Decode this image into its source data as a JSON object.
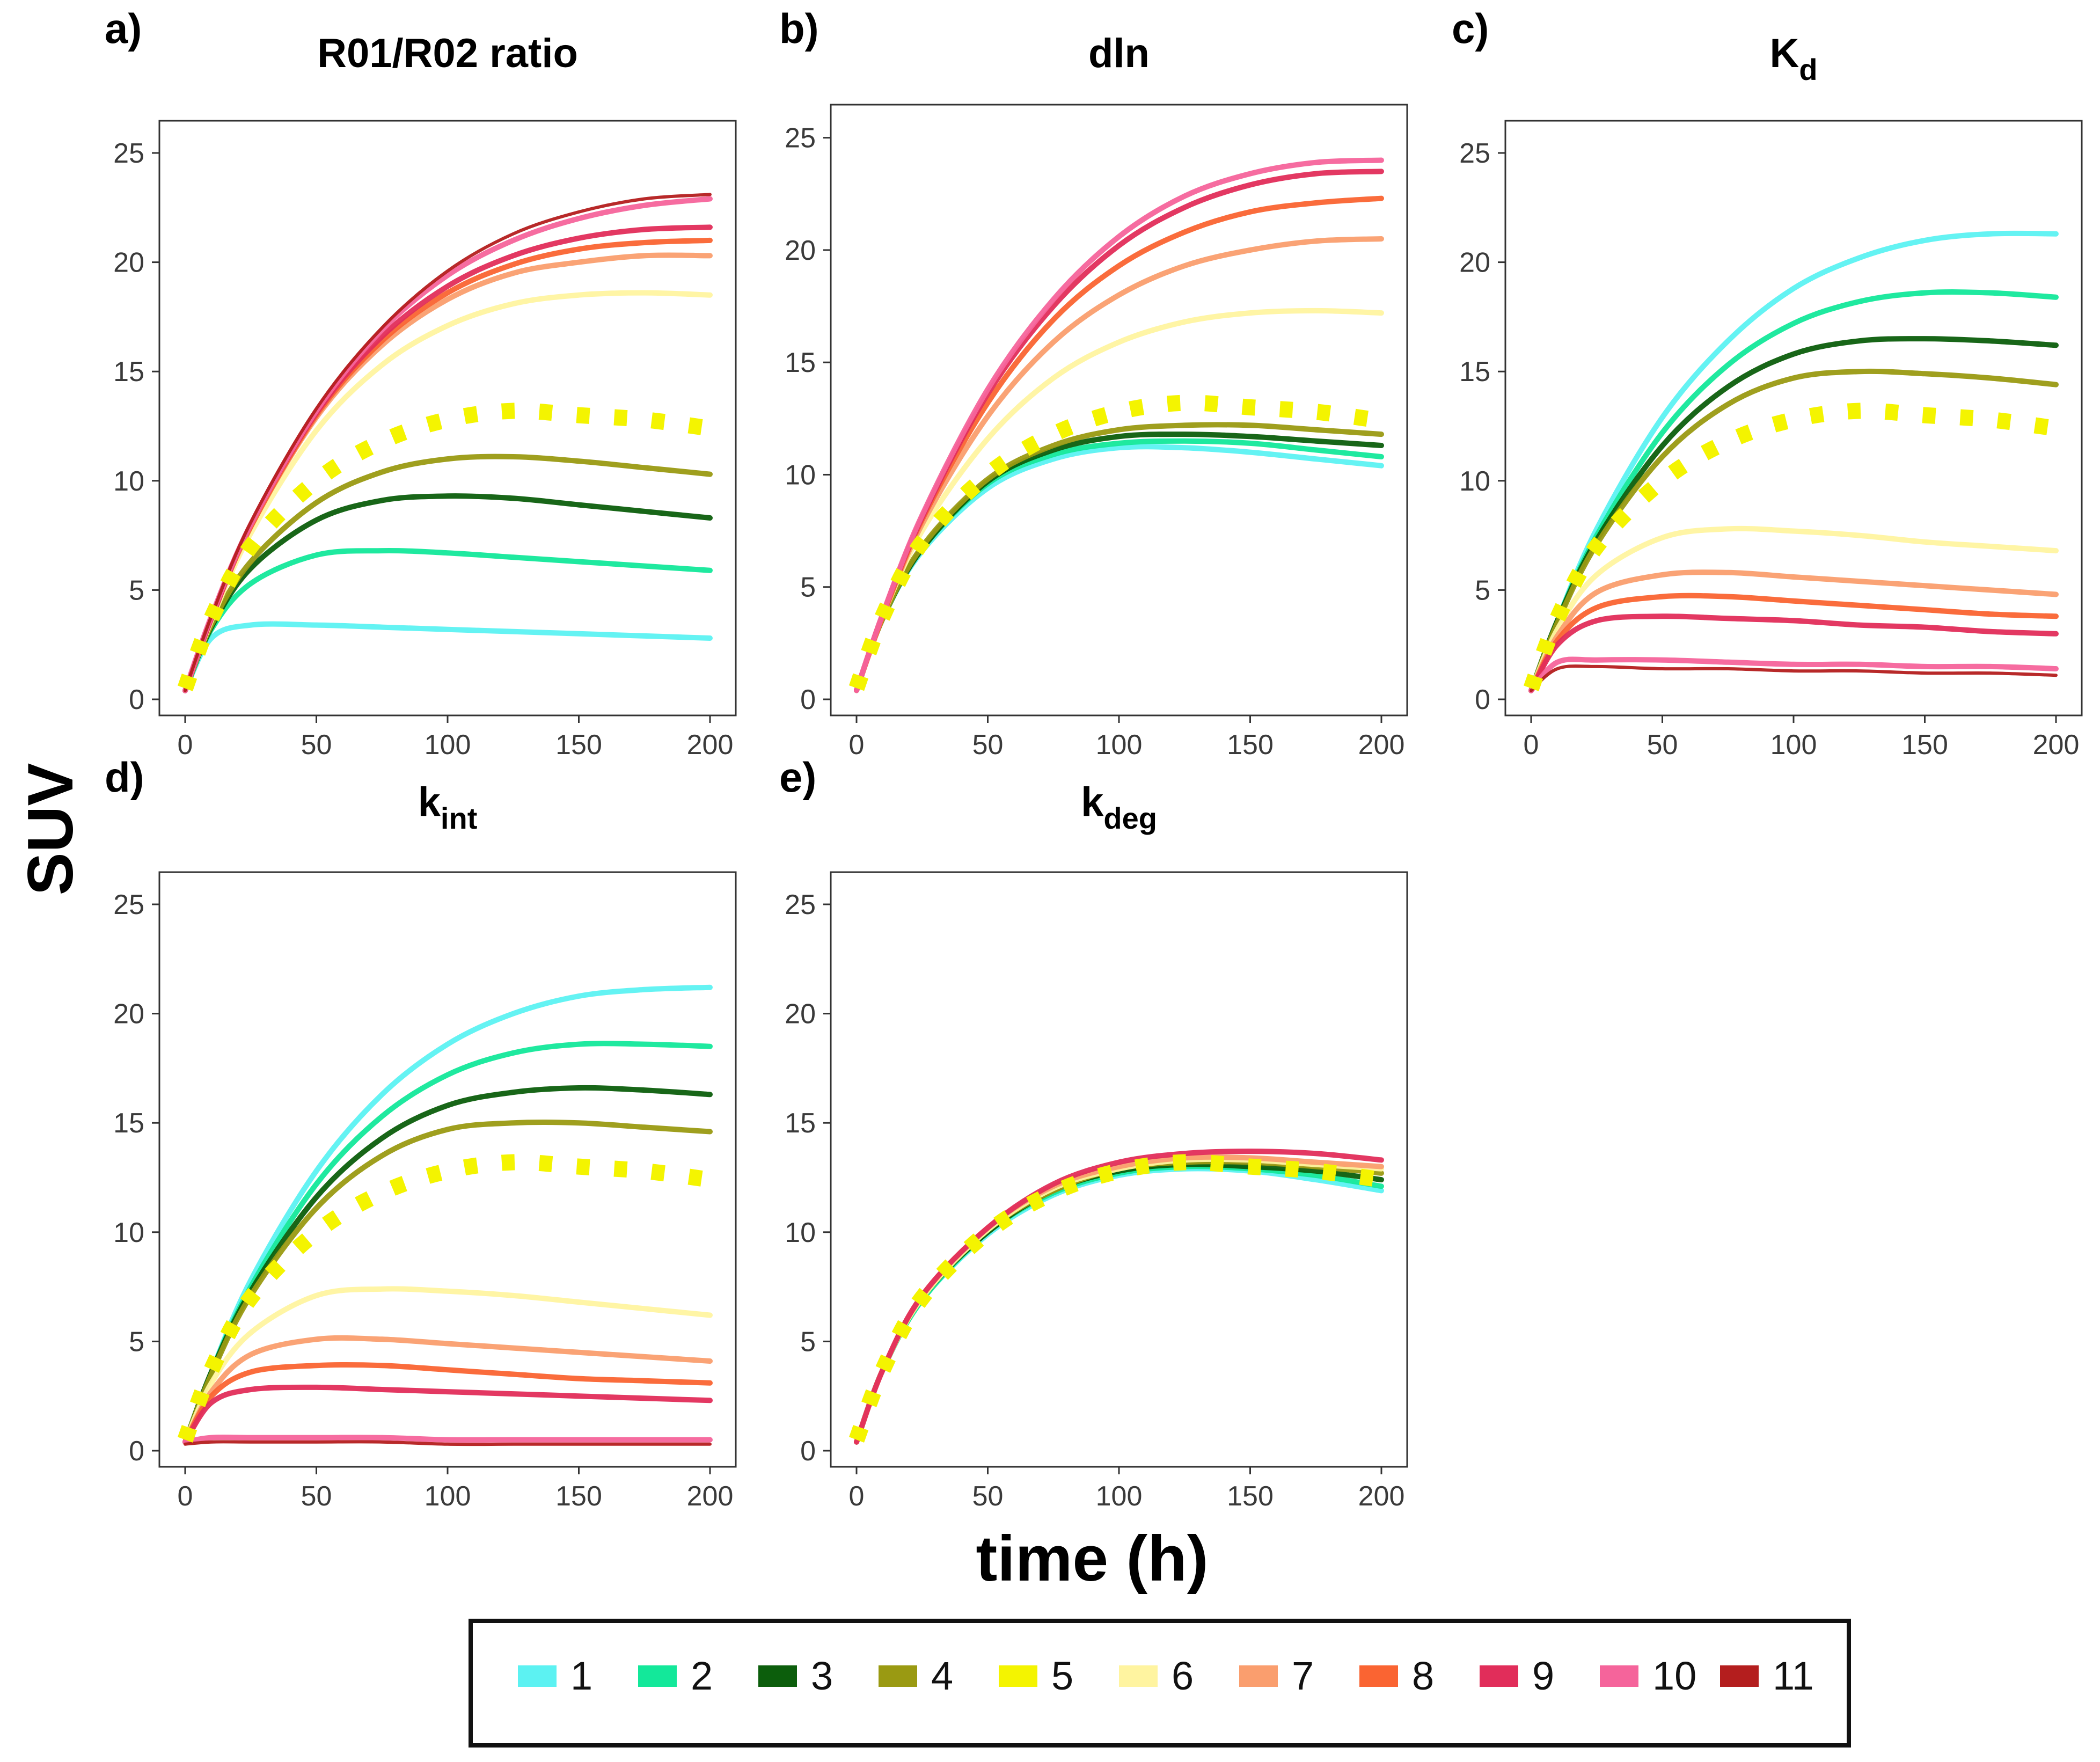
{
  "figure": {
    "ylabel": "SUV",
    "xlabel": "time (h)"
  },
  "legend": {
    "items": [
      {
        "label": "1",
        "color": "#5cf2f2"
      },
      {
        "label": "2",
        "color": "#13e89a"
      },
      {
        "label": "3",
        "color": "#0c5e0c"
      },
      {
        "label": "4",
        "color": "#9a9a12"
      },
      {
        "label": "5",
        "color": "#f4f400"
      },
      {
        "label": "6",
        "color": "#fff4a0"
      },
      {
        "label": "7",
        "color": "#fa9e6e"
      },
      {
        "label": "8",
        "color": "#fa6432"
      },
      {
        "label": "9",
        "color": "#e12d5a"
      },
      {
        "label": "10",
        "color": "#f5649b"
      },
      {
        "label": "11",
        "color": "#b41e1e"
      }
    ]
  },
  "axis": {
    "x_ticks": [
      0,
      50,
      100,
      150,
      200
    ],
    "y_ticks": [
      0,
      5,
      10,
      15,
      20,
      25
    ]
  },
  "chart_data": [
    {
      "type": "line",
      "panel": "a)",
      "title": "R01/R02 ratio",
      "title_sub": "",
      "xlim": [
        0,
        200
      ],
      "ylim": [
        0,
        25
      ],
      "x": [
        0,
        10,
        25,
        50,
        75,
        100,
        125,
        150,
        175,
        200
      ],
      "reference": {
        "name": "5",
        "values": [
          0.5,
          3.7,
          7.0,
          10.0,
          11.8,
          12.8,
          13.2,
          13.0,
          12.8,
          12.4
        ]
      },
      "series": [
        {
          "name": "1",
          "values": [
            0.4,
            2.8,
            3.4,
            3.4,
            3.3,
            3.2,
            3.1,
            3.0,
            2.9,
            2.8
          ]
        },
        {
          "name": "2",
          "values": [
            0.4,
            3.2,
            5.3,
            6.6,
            6.8,
            6.7,
            6.5,
            6.3,
            6.1,
            5.9
          ]
        },
        {
          "name": "3",
          "values": [
            0.4,
            3.3,
            6.0,
            8.2,
            9.1,
            9.3,
            9.2,
            8.9,
            8.6,
            8.3
          ]
        },
        {
          "name": "4",
          "values": [
            0.4,
            3.4,
            6.3,
            9.0,
            10.4,
            11.0,
            11.1,
            10.9,
            10.6,
            10.3
          ]
        },
        {
          "name": "6",
          "values": [
            0.4,
            3.6,
            7.6,
            12.3,
            15.3,
            17.1,
            18.1,
            18.5,
            18.6,
            18.5
          ]
        },
        {
          "name": "7",
          "values": [
            0.4,
            3.7,
            7.9,
            12.9,
            16.2,
            18.3,
            19.5,
            20.0,
            20.3,
            20.3
          ]
        },
        {
          "name": "8",
          "values": [
            0.4,
            3.7,
            7.9,
            13.0,
            16.4,
            18.6,
            19.9,
            20.6,
            20.9,
            21.0
          ]
        },
        {
          "name": "9",
          "values": [
            0.4,
            3.7,
            8.0,
            13.1,
            16.6,
            18.9,
            20.3,
            21.1,
            21.5,
            21.6
          ]
        },
        {
          "name": "10",
          "values": [
            0.4,
            3.8,
            8.0,
            13.2,
            16.9,
            19.4,
            21.0,
            22.0,
            22.6,
            22.9
          ]
        },
        {
          "name": "11",
          "values": [
            0.4,
            3.8,
            8.1,
            13.3,
            17.0,
            19.6,
            21.3,
            22.3,
            22.9,
            23.1
          ]
        }
      ]
    },
    {
      "type": "line",
      "panel": "b)",
      "title": "dln",
      "title_sub": "",
      "xlim": [
        0,
        200
      ],
      "ylim": [
        0,
        25
      ],
      "x": [
        0,
        10,
        25,
        50,
        75,
        100,
        125,
        150,
        175,
        200
      ],
      "reference": {
        "name": "5",
        "values": [
          0.5,
          3.7,
          7.0,
          10.0,
          11.8,
          12.8,
          13.2,
          13.0,
          12.8,
          12.4
        ]
      },
      "series": [
        {
          "name": "1",
          "values": [
            0.4,
            3.6,
            6.6,
            9.4,
            10.7,
            11.2,
            11.2,
            11.0,
            10.7,
            10.4
          ]
        },
        {
          "name": "2",
          "values": [
            0.4,
            3.6,
            6.7,
            9.6,
            10.9,
            11.4,
            11.5,
            11.4,
            11.1,
            10.8
          ]
        },
        {
          "name": "3",
          "values": [
            0.4,
            3.6,
            6.7,
            9.7,
            11.1,
            11.7,
            11.8,
            11.7,
            11.5,
            11.3
          ]
        },
        {
          "name": "4",
          "values": [
            0.4,
            3.6,
            6.8,
            9.8,
            11.3,
            12.0,
            12.2,
            12.2,
            12.0,
            11.8
          ]
        },
        {
          "name": "6",
          "values": [
            0.4,
            3.7,
            7.5,
            11.6,
            14.3,
            15.9,
            16.8,
            17.2,
            17.3,
            17.2
          ]
        },
        {
          "name": "7",
          "values": [
            0.4,
            3.7,
            7.8,
            12.6,
            15.9,
            18.0,
            19.3,
            20.0,
            20.4,
            20.5
          ]
        },
        {
          "name": "8",
          "values": [
            0.4,
            3.7,
            8.0,
            13.2,
            16.9,
            19.3,
            20.8,
            21.7,
            22.1,
            22.3
          ]
        },
        {
          "name": "9",
          "values": [
            0.4,
            3.8,
            8.1,
            13.6,
            17.5,
            20.2,
            21.9,
            22.9,
            23.4,
            23.5
          ]
        },
        {
          "name": "10",
          "values": [
            0.4,
            3.8,
            8.2,
            13.8,
            17.8,
            20.6,
            22.4,
            23.4,
            23.9,
            24.0
          ]
        }
      ]
    },
    {
      "type": "line",
      "panel": "c)",
      "title": "K",
      "title_sub": "d",
      "xlim": [
        0,
        200
      ],
      "ylim": [
        0,
        25
      ],
      "x": [
        0,
        10,
        25,
        50,
        75,
        100,
        125,
        150,
        175,
        200
      ],
      "reference": {
        "name": "5",
        "values": [
          0.5,
          3.7,
          7.0,
          10.0,
          11.8,
          12.8,
          13.2,
          13.0,
          12.8,
          12.4
        ]
      },
      "series": [
        {
          "name": "1",
          "values": [
            0.4,
            3.6,
            7.8,
            12.9,
            16.4,
            18.8,
            20.2,
            21.0,
            21.3,
            21.3
          ]
        },
        {
          "name": "2",
          "values": [
            0.4,
            3.6,
            7.5,
            12.2,
            15.3,
            17.2,
            18.2,
            18.6,
            18.6,
            18.4
          ]
        },
        {
          "name": "3",
          "values": [
            0.4,
            3.6,
            7.3,
            11.6,
            14.3,
            15.8,
            16.4,
            16.5,
            16.4,
            16.2
          ]
        },
        {
          "name": "4",
          "values": [
            0.4,
            3.5,
            7.1,
            11.1,
            13.5,
            14.7,
            15.0,
            14.9,
            14.7,
            14.4
          ]
        },
        {
          "name": "6",
          "values": [
            0.4,
            3.2,
            5.7,
            7.4,
            7.8,
            7.7,
            7.5,
            7.2,
            7.0,
            6.8
          ]
        },
        {
          "name": "7",
          "values": [
            0.4,
            2.9,
            4.9,
            5.7,
            5.8,
            5.6,
            5.4,
            5.2,
            5.0,
            4.8
          ]
        },
        {
          "name": "8",
          "values": [
            0.4,
            2.7,
            4.2,
            4.7,
            4.7,
            4.5,
            4.3,
            4.1,
            3.9,
            3.8
          ]
        },
        {
          "name": "9",
          "values": [
            0.4,
            2.5,
            3.6,
            3.8,
            3.7,
            3.6,
            3.4,
            3.3,
            3.1,
            3.0
          ]
        },
        {
          "name": "10",
          "values": [
            0.4,
            1.7,
            1.8,
            1.8,
            1.7,
            1.6,
            1.6,
            1.5,
            1.5,
            1.4
          ]
        },
        {
          "name": "11",
          "values": [
            0.4,
            1.4,
            1.5,
            1.4,
            1.4,
            1.3,
            1.3,
            1.2,
            1.2,
            1.1
          ]
        }
      ]
    },
    {
      "type": "line",
      "panel": "d)",
      "title": "k",
      "title_sub": "int",
      "xlim": [
        0,
        200
      ],
      "ylim": [
        0,
        25
      ],
      "x": [
        0,
        10,
        25,
        50,
        75,
        100,
        125,
        150,
        175,
        200
      ],
      "reference": {
        "name": "5",
        "values": [
          0.5,
          3.7,
          7.0,
          10.0,
          11.8,
          12.8,
          13.2,
          13.0,
          12.8,
          12.4
        ]
      },
      "series": [
        {
          "name": "1",
          "values": [
            0.4,
            3.6,
            7.8,
            12.8,
            16.3,
            18.6,
            20.0,
            20.8,
            21.1,
            21.2
          ]
        },
        {
          "name": "2",
          "values": [
            0.4,
            3.6,
            7.5,
            12.2,
            15.3,
            17.2,
            18.2,
            18.6,
            18.6,
            18.5
          ]
        },
        {
          "name": "3",
          "values": [
            0.4,
            3.6,
            7.3,
            11.6,
            14.3,
            15.8,
            16.4,
            16.6,
            16.5,
            16.3
          ]
        },
        {
          "name": "4",
          "values": [
            0.4,
            3.5,
            7.1,
            11.1,
            13.5,
            14.7,
            15.0,
            15.0,
            14.8,
            14.6
          ]
        },
        {
          "name": "6",
          "values": [
            0.4,
            3.1,
            5.4,
            7.1,
            7.4,
            7.3,
            7.1,
            6.8,
            6.5,
            6.2
          ]
        },
        {
          "name": "7",
          "values": [
            0.4,
            2.7,
            4.4,
            5.1,
            5.1,
            4.9,
            4.7,
            4.5,
            4.3,
            4.1
          ]
        },
        {
          "name": "8",
          "values": [
            0.4,
            2.5,
            3.6,
            3.9,
            3.9,
            3.7,
            3.5,
            3.3,
            3.2,
            3.1
          ]
        },
        {
          "name": "9",
          "values": [
            0.4,
            2.2,
            2.8,
            2.9,
            2.8,
            2.7,
            2.6,
            2.5,
            2.4,
            2.3
          ]
        },
        {
          "name": "10",
          "values": [
            0.4,
            0.6,
            0.6,
            0.6,
            0.6,
            0.5,
            0.5,
            0.5,
            0.5,
            0.5
          ]
        },
        {
          "name": "11",
          "values": [
            0.3,
            0.4,
            0.4,
            0.4,
            0.4,
            0.3,
            0.3,
            0.3,
            0.3,
            0.3
          ]
        }
      ]
    },
    {
      "type": "line",
      "panel": "e)",
      "title": "k",
      "title_sub": "deg",
      "xlim": [
        0,
        200
      ],
      "ylim": [
        0,
        25
      ],
      "x": [
        0,
        10,
        25,
        50,
        75,
        100,
        125,
        150,
        175,
        200
      ],
      "reference": {
        "name": "5",
        "values": [
          0.5,
          3.7,
          7.0,
          10.0,
          11.8,
          12.8,
          13.2,
          13.0,
          12.8,
          12.4
        ]
      },
      "series": [
        {
          "name": "1",
          "values": [
            0.4,
            3.7,
            6.9,
            9.9,
            11.7,
            12.6,
            12.9,
            12.8,
            12.4,
            11.9
          ]
        },
        {
          "name": "2",
          "values": [
            0.4,
            3.7,
            6.9,
            10.0,
            11.8,
            12.7,
            13.0,
            12.9,
            12.6,
            12.1
          ]
        },
        {
          "name": "3",
          "values": [
            0.4,
            3.7,
            7.0,
            10.0,
            11.9,
            12.8,
            13.1,
            13.0,
            12.8,
            12.4
          ]
        },
        {
          "name": "4",
          "values": [
            0.4,
            3.7,
            7.0,
            10.1,
            11.9,
            12.9,
            13.2,
            13.2,
            13.0,
            12.7
          ]
        },
        {
          "name": "6",
          "values": [
            0.4,
            3.7,
            7.0,
            10.1,
            12.0,
            12.9,
            13.3,
            13.3,
            13.1,
            12.9
          ]
        },
        {
          "name": "7",
          "values": [
            0.4,
            3.7,
            7.1,
            10.2,
            12.1,
            13.0,
            13.4,
            13.4,
            13.2,
            13.0
          ]
        },
        {
          "name": "9",
          "values": [
            0.4,
            3.7,
            7.1,
            10.2,
            12.2,
            13.2,
            13.6,
            13.7,
            13.6,
            13.3
          ]
        }
      ]
    }
  ]
}
